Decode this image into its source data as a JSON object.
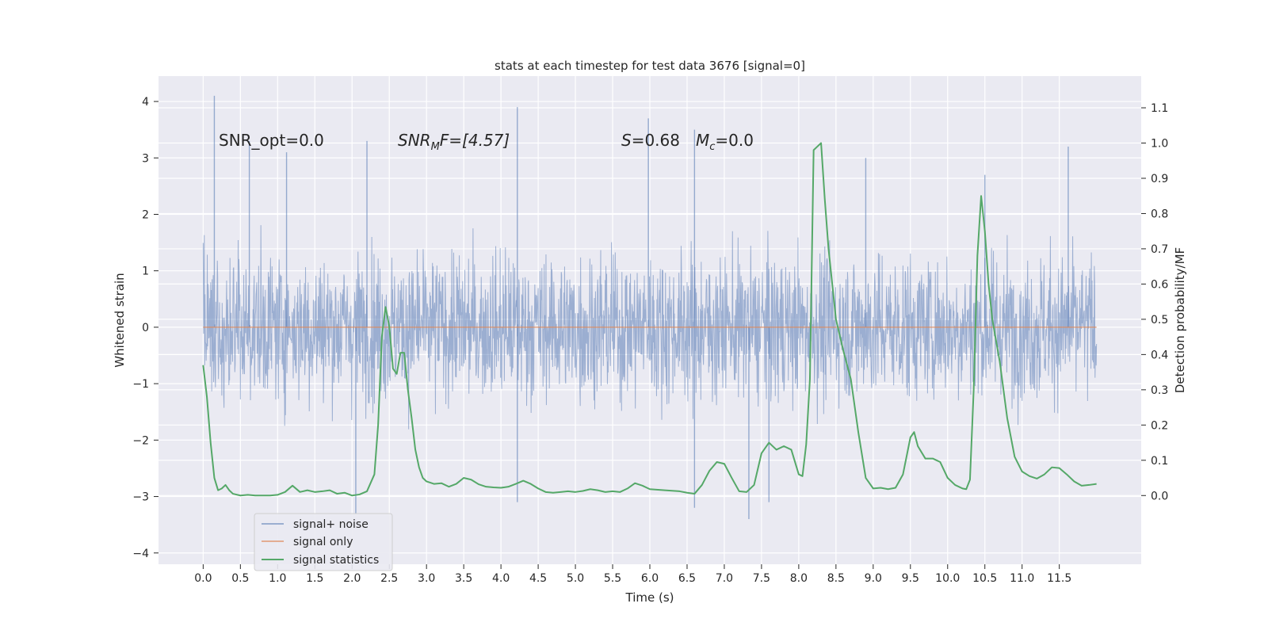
{
  "chart_data": {
    "type": "line",
    "title": "stats at each timestep for test data 3676 [signal=0]",
    "xlabel": "Time (s)",
    "ylabel": "Whitened strain",
    "ylabel_right": "Detection probability/MF",
    "xlim": [
      -0.6,
      12.6
    ],
    "ylim": [
      -4.2,
      4.45
    ],
    "ylim_right": [
      -0.195,
      1.19
    ],
    "x_ticks": [
      0.0,
      0.5,
      1.0,
      1.5,
      2.0,
      2.5,
      3.0,
      3.5,
      4.0,
      4.5,
      5.0,
      5.5,
      6.0,
      6.5,
      7.0,
      7.5,
      8.0,
      8.5,
      9.0,
      9.5,
      10.0,
      10.5,
      11.0,
      11.5
    ],
    "x_tick_labels": [
      "0.0",
      "0.5",
      "1.0",
      "1.5",
      "2.0",
      "2.5",
      "3.0",
      "3.5",
      "4.0",
      "4.5",
      "5.0",
      "5.5",
      "6.0",
      "6.5",
      "7.0",
      "7.5",
      "8.0",
      "8.5",
      "9.0",
      "9.5",
      "10.0",
      "10.5",
      "11.0",
      "11.5"
    ],
    "y_ticks": [
      -4,
      -3,
      -2,
      -1,
      0,
      1,
      2,
      3,
      4
    ],
    "y_tick_labels": [
      "−4",
      "−3",
      "−2",
      "−1",
      "0",
      "1",
      "2",
      "3",
      "4"
    ],
    "y_ticks_right": [
      0.0,
      0.1,
      0.2,
      0.3,
      0.4,
      0.5,
      0.6,
      0.7,
      0.8,
      0.9,
      1.0,
      1.1
    ],
    "y_tick_labels_right": [
      "0.0",
      "0.1",
      "0.2",
      "0.3",
      "0.4",
      "0.5",
      "0.6",
      "0.7",
      "0.8",
      "0.9",
      "1.0",
      "1.1"
    ],
    "grid": true,
    "legend_position": "lower-left",
    "annotations": {
      "snr_opt": "SNR_opt=0.0",
      "snr_mf_main": "SNR",
      "snr_mf_sub": "M",
      "snr_mf_rest": "F=[4.57]",
      "s_var": "S",
      "s_rest": "=0.68",
      "mc_var": "M",
      "mc_sub": "c",
      "mc_rest": "=0.0"
    },
    "series": [
      {
        "name": "signal+ noise",
        "color": "#4c72b0",
        "note_envelope": "dense noisy strain between roughly -2.5 and 2.5",
        "spikes_x": [
          0.15,
          0.62,
          1.12,
          2.2,
          4.22,
          5.98,
          6.6,
          8.9,
          10.5,
          11.62,
          2.05,
          7.33,
          4.22,
          7.6,
          6.6
        ],
        "spikes_y": [
          4.1,
          3.3,
          3.1,
          3.3,
          3.9,
          3.7,
          3.5,
          3.0,
          2.7,
          3.2,
          -3.3,
          -3.4,
          -3.1,
          -3.1,
          -3.2
        ]
      },
      {
        "name": "signal only",
        "color": "#dd8452",
        "x": [
          0.0,
          12.0
        ],
        "y": [
          0.0,
          0.0
        ]
      },
      {
        "name": "signal statistics",
        "color": "#55a868",
        "axis": "right",
        "x": [
          0.0,
          0.05,
          0.1,
          0.15,
          0.2,
          0.25,
          0.3,
          0.35,
          0.4,
          0.5,
          0.6,
          0.7,
          0.8,
          0.9,
          1.0,
          1.1,
          1.2,
          1.3,
          1.4,
          1.5,
          1.6,
          1.7,
          1.8,
          1.9,
          2.0,
          2.1,
          2.2,
          2.3,
          2.35,
          2.4,
          2.45,
          2.5,
          2.55,
          2.6,
          2.65,
          2.7,
          2.75,
          2.8,
          2.85,
          2.9,
          2.95,
          3.0,
          3.1,
          3.2,
          3.3,
          3.4,
          3.5,
          3.6,
          3.7,
          3.8,
          3.9,
          4.0,
          4.1,
          4.2,
          4.3,
          4.4,
          4.5,
          4.6,
          4.7,
          4.8,
          4.9,
          5.0,
          5.1,
          5.2,
          5.3,
          5.4,
          5.5,
          5.6,
          5.7,
          5.8,
          5.9,
          6.0,
          6.2,
          6.4,
          6.5,
          6.6,
          6.7,
          6.8,
          6.9,
          7.0,
          7.1,
          7.2,
          7.3,
          7.4,
          7.5,
          7.6,
          7.7,
          7.8,
          7.9,
          8.0,
          8.05,
          8.1,
          8.15,
          8.2,
          8.25,
          8.3,
          8.35,
          8.4,
          8.5,
          8.6,
          8.7,
          8.8,
          8.9,
          9.0,
          9.1,
          9.2,
          9.3,
          9.4,
          9.5,
          9.55,
          9.6,
          9.7,
          9.8,
          9.9,
          10.0,
          10.1,
          10.2,
          10.25,
          10.3,
          10.35,
          10.4,
          10.45,
          10.5,
          10.55,
          10.6,
          10.7,
          10.8,
          10.9,
          11.0,
          11.1,
          11.2,
          11.3,
          11.4,
          11.5,
          11.6,
          11.7,
          11.8,
          11.9,
          12.0
        ],
        "y": [
          0.37,
          0.28,
          0.15,
          0.05,
          0.015,
          0.02,
          0.03,
          0.015,
          0.005,
          0.0,
          0.002,
          0.0,
          0.0,
          0.0,
          0.002,
          0.01,
          0.028,
          0.01,
          0.015,
          0.01,
          0.012,
          0.015,
          0.005,
          0.008,
          0.0,
          0.003,
          0.012,
          0.06,
          0.2,
          0.45,
          0.535,
          0.48,
          0.36,
          0.345,
          0.405,
          0.405,
          0.3,
          0.22,
          0.13,
          0.08,
          0.05,
          0.04,
          0.033,
          0.035,
          0.025,
          0.033,
          0.05,
          0.045,
          0.032,
          0.025,
          0.023,
          0.022,
          0.025,
          0.033,
          0.042,
          0.033,
          0.02,
          0.01,
          0.008,
          0.01,
          0.012,
          0.01,
          0.013,
          0.018,
          0.015,
          0.01,
          0.012,
          0.01,
          0.02,
          0.035,
          0.028,
          0.018,
          0.015,
          0.012,
          0.008,
          0.005,
          0.03,
          0.07,
          0.095,
          0.09,
          0.05,
          0.012,
          0.01,
          0.03,
          0.12,
          0.15,
          0.13,
          0.14,
          0.13,
          0.06,
          0.055,
          0.145,
          0.33,
          0.98,
          0.99,
          1.0,
          0.84,
          0.7,
          0.5,
          0.41,
          0.33,
          0.18,
          0.05,
          0.02,
          0.022,
          0.018,
          0.022,
          0.06,
          0.165,
          0.18,
          0.14,
          0.105,
          0.105,
          0.095,
          0.05,
          0.03,
          0.02,
          0.018,
          0.045,
          0.3,
          0.68,
          0.85,
          0.75,
          0.6,
          0.5,
          0.38,
          0.22,
          0.11,
          0.068,
          0.055,
          0.048,
          0.06,
          0.08,
          0.078,
          0.06,
          0.04,
          0.028,
          0.03,
          0.033
        ]
      }
    ]
  }
}
